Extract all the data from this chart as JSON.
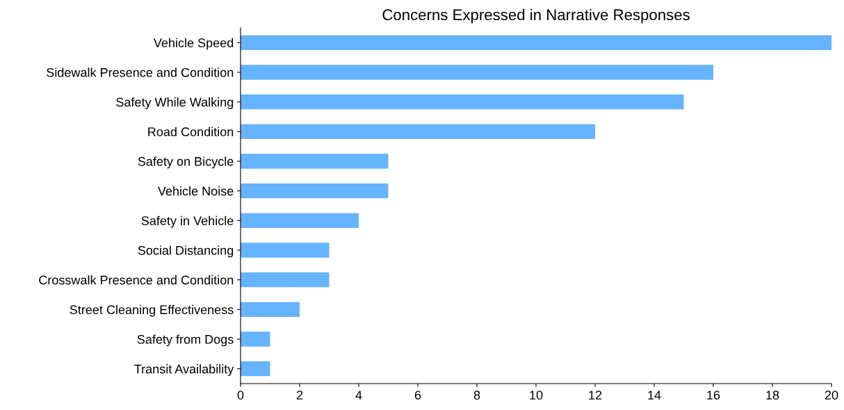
{
  "chart_data": {
    "type": "bar",
    "orientation": "horizontal",
    "title": "Concerns Expressed in Narrative Responses",
    "categories": [
      "Vehicle Speed",
      "Sidewalk Presence and Condition",
      "Safety While Walking",
      "Road Condition",
      "Safety on Bicycle",
      "Vehicle Noise",
      "Safety in Vehicle",
      "Social Distancing",
      "Crosswalk Presence and Condition",
      "Street Cleaning Effectiveness",
      "Safety from Dogs",
      "Transit Availability"
    ],
    "values": [
      20,
      16,
      15,
      12,
      5,
      5,
      4,
      3,
      3,
      2,
      1,
      1
    ],
    "color": "#66b3ff",
    "xlim": [
      0,
      20
    ],
    "xticks": [
      0,
      2,
      4,
      6,
      8,
      10,
      12,
      14,
      16,
      18,
      20
    ],
    "grid": false,
    "legend": false
  }
}
